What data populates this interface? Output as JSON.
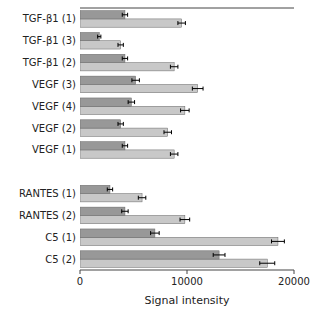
{
  "chart_data": {
    "type": "bar",
    "orientation": "horizontal",
    "categories": [
      "TGF-β1 (1)",
      "TGF-β1 (3)",
      "TGF-β1 (2)",
      "VEGF (3)",
      "VEGF (4)",
      "VEGF (2)",
      "VEGF (1)",
      null,
      "RANTES (1)",
      "RANTES (2)",
      "C5 (1)",
      "C5 (2)"
    ],
    "series": [
      {
        "color": "#c8c8c8",
        "values": [
          9500,
          3800,
          8800,
          11000,
          9800,
          8200,
          8800,
          null,
          5800,
          9800,
          18500,
          17500
        ],
        "errors": [
          350,
          250,
          350,
          500,
          400,
          350,
          350,
          null,
          350,
          450,
          600,
          700
        ]
      },
      {
        "color": "#989898",
        "values": [
          4200,
          1800,
          4200,
          5200,
          4800,
          3800,
          4200,
          null,
          2800,
          4200,
          7000,
          13000
        ],
        "errors": [
          250,
          150,
          250,
          350,
          300,
          250,
          250,
          null,
          250,
          300,
          400,
          550
        ]
      }
    ],
    "xlim": [
      0,
      20000
    ],
    "xticks": [
      0,
      10000,
      20000
    ],
    "xlabel": "Signal intensity",
    "grid": false
  }
}
